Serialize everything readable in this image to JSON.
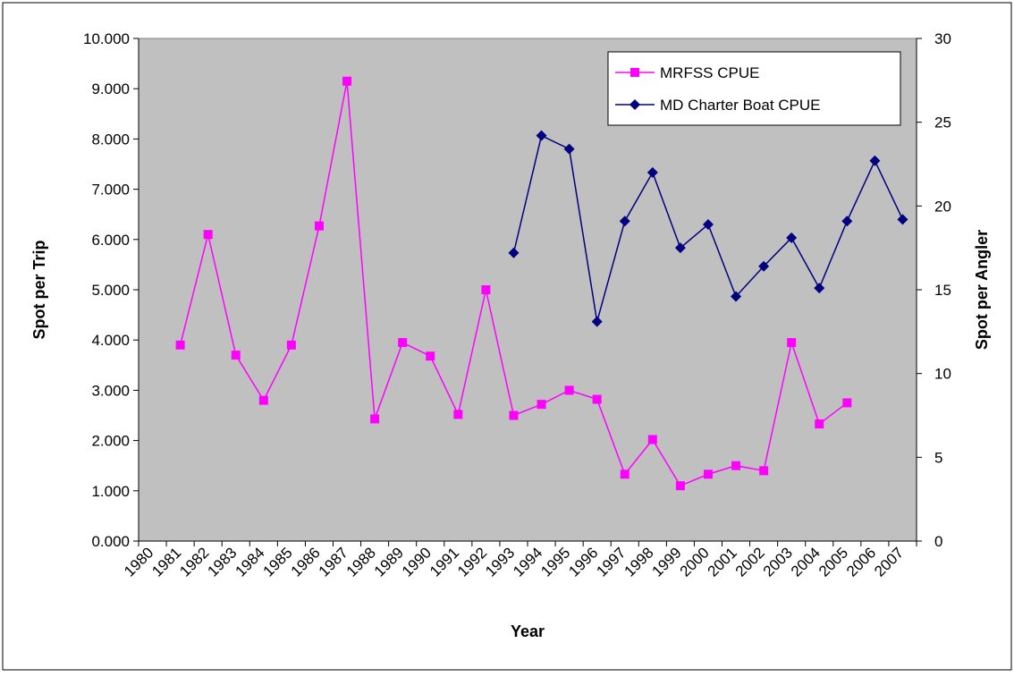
{
  "chart_data": {
    "type": "line",
    "x_label": "Year",
    "y_label": "Spot per Trip",
    "y2_label": "Spot per Angler",
    "categories": [
      "1980",
      "1981",
      "1982",
      "1983",
      "1984",
      "1985",
      "1986",
      "1987",
      "1988",
      "1989",
      "1990",
      "1991",
      "1992",
      "1993",
      "1994",
      "1995",
      "1996",
      "1997",
      "1998",
      "1999",
      "2000",
      "2001",
      "2002",
      "2003",
      "2004",
      "2005",
      "2006",
      "2007"
    ],
    "series": [
      {
        "name": "MRFSS CPUE",
        "color": "#ff00ff",
        "marker": "square",
        "values": [
          null,
          3.9,
          6.1,
          3.7,
          2.8,
          3.9,
          6.27,
          9.15,
          2.43,
          3.95,
          3.68,
          2.52,
          5.0,
          2.5,
          2.72,
          3.0,
          2.82,
          1.33,
          2.02,
          1.1,
          1.33,
          1.5,
          1.4,
          3.95,
          2.33,
          2.75,
          null,
          null
        ]
      },
      {
        "name": "MD Charter Boat CPUE",
        "color": "#000080",
        "marker": "diamond",
        "axis": "y2",
        "values": [
          null,
          null,
          null,
          null,
          null,
          null,
          null,
          null,
          null,
          null,
          null,
          null,
          null,
          17.2,
          24.2,
          23.4,
          13.1,
          19.1,
          22.0,
          17.5,
          18.9,
          14.6,
          16.4,
          18.1,
          15.1,
          19.1,
          22.7,
          19.2
        ]
      }
    ],
    "ylim": [
      0,
      10
    ],
    "yticks": [
      {
        "value": 0,
        "label": "0.000"
      },
      {
        "value": 1,
        "label": "1.000"
      },
      {
        "value": 2,
        "label": "2.000"
      },
      {
        "value": 3,
        "label": "3.000"
      },
      {
        "value": 4,
        "label": "4.000"
      },
      {
        "value": 5,
        "label": "5.000"
      },
      {
        "value": 6,
        "label": "6.000"
      },
      {
        "value": 7,
        "label": "7.000"
      },
      {
        "value": 8,
        "label": "8.000"
      },
      {
        "value": 9,
        "label": "9.000"
      },
      {
        "value": 10,
        "label": "10.000"
      }
    ],
    "y2lim": [
      0,
      30
    ],
    "y2ticks": [
      0,
      5,
      10,
      15,
      20,
      25,
      30
    ],
    "plot_background": "#c0c0c0",
    "legend": "top-right"
  }
}
